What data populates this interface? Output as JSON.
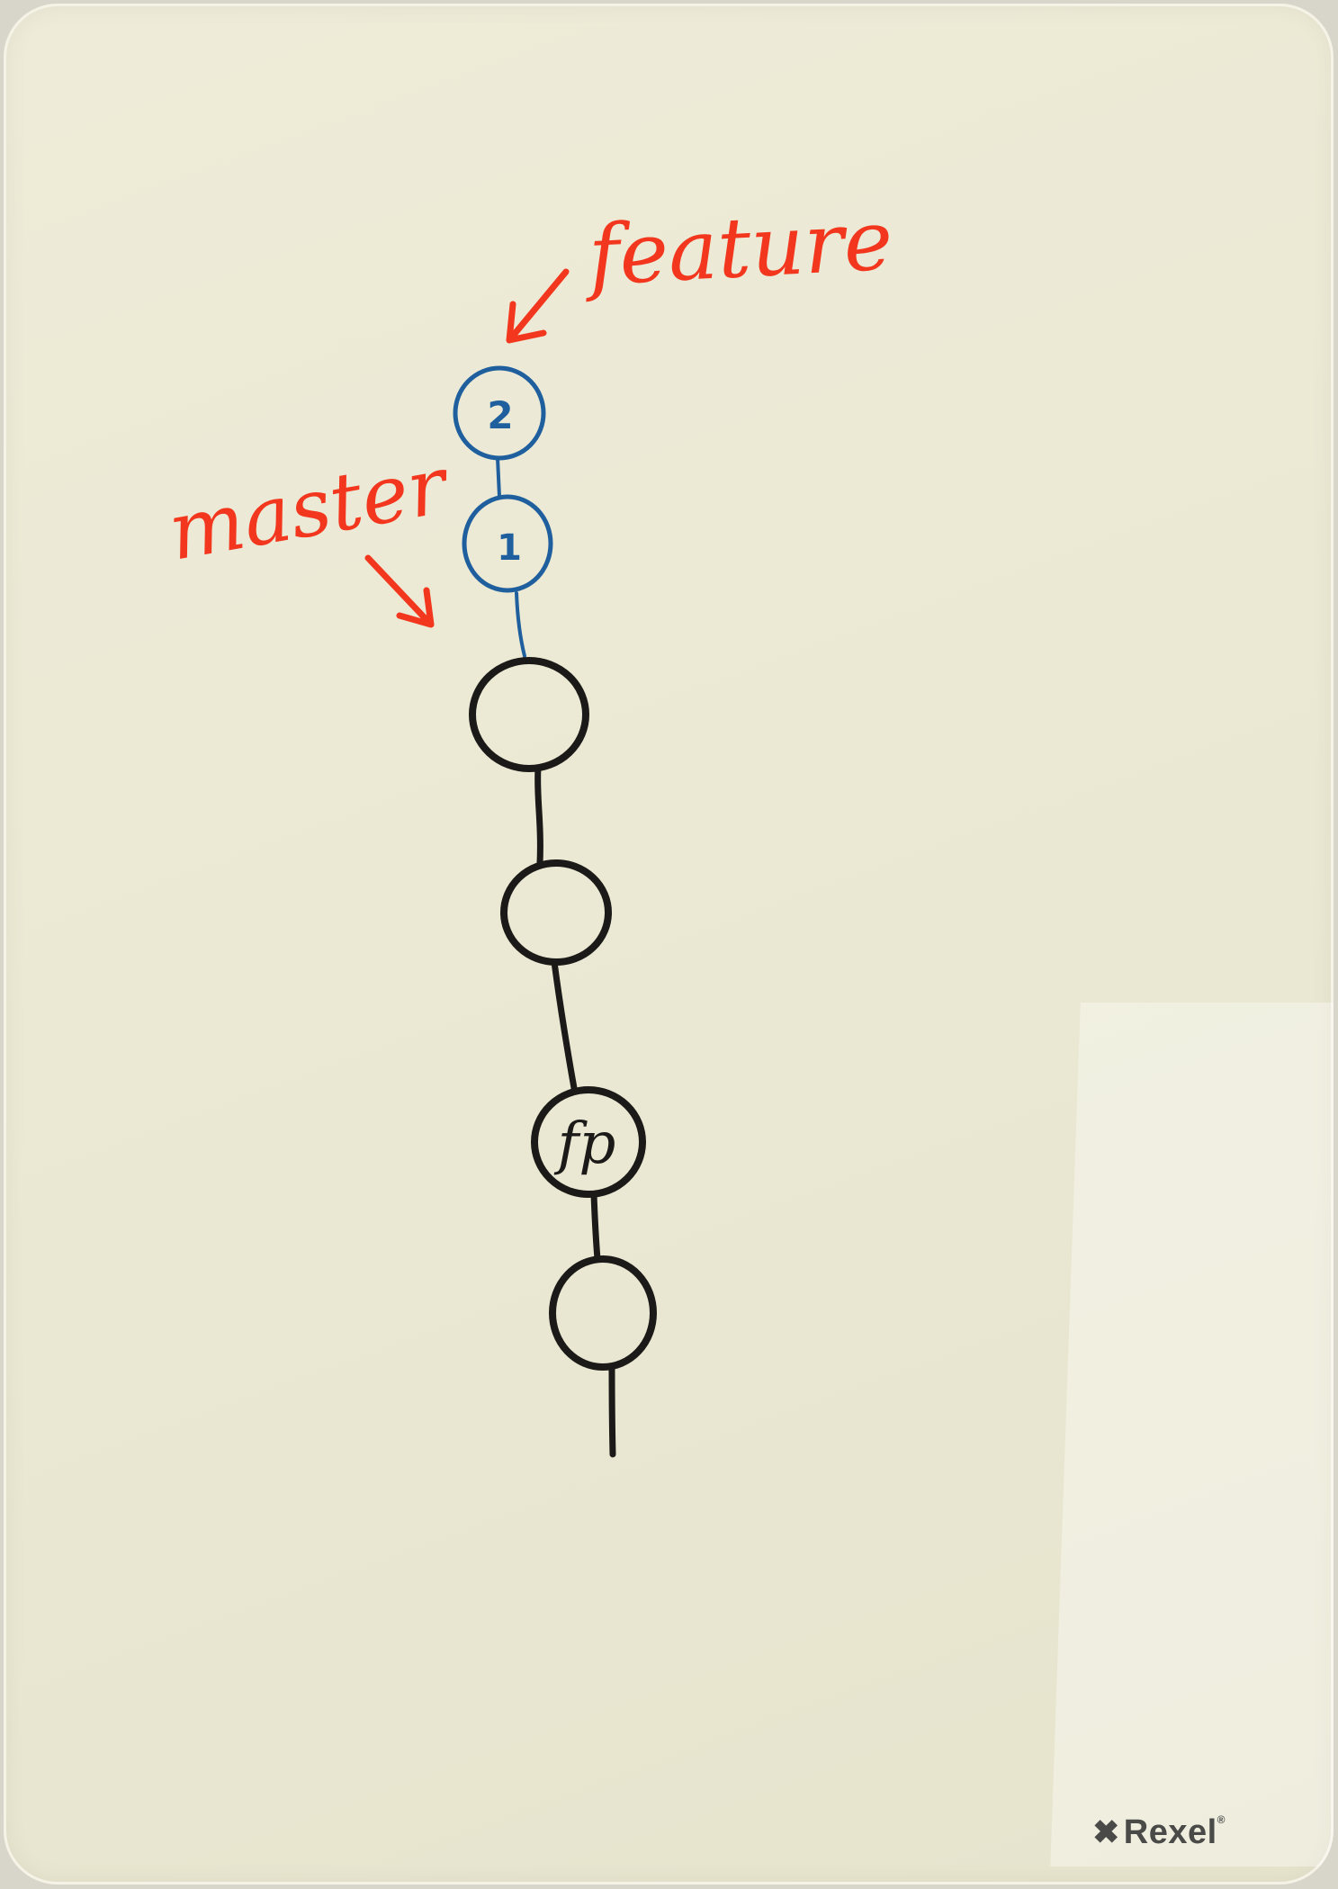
{
  "labels": {
    "feature": "feature",
    "master": "master"
  },
  "commits": {
    "blue_top": "2",
    "blue_bottom": "1",
    "fp": "fp"
  },
  "brand": {
    "name": "Rexel",
    "mark": "✖",
    "registered": "®"
  },
  "colors": {
    "board": "#ebe9d4",
    "red_marker": "#f2371e",
    "blue_marker": "#1f5f9e",
    "black_marker": "#1c1a18"
  }
}
